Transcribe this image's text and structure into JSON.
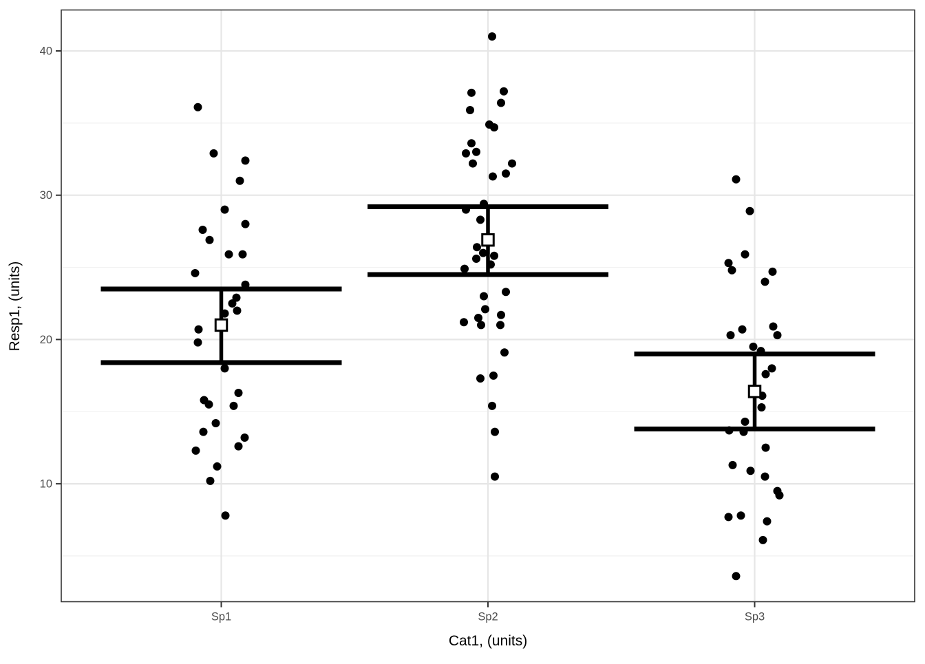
{
  "figure": {
    "title": "",
    "xlabel": "Cat1, (units)",
    "ylabel": "Resp1, (units)"
  },
  "colors": {
    "background": "#ffffff",
    "point": "#000000",
    "crossbar": "#000000",
    "mean_marker_fill": "#ffffff",
    "mean_marker_border": "#000000",
    "grid_major": "#e6e6e6",
    "grid_minor": "#f2f2f2",
    "panel_border": "#333333",
    "tick_mark": "#333333",
    "tick_text": "#4d4d4d",
    "title_text": "#000000"
  },
  "chart_data": {
    "type": "scatter",
    "subtype": "jittered-points-with-mean-and-errorbar-crossbars",
    "title": "",
    "xlabel": "Cat1, (units)",
    "ylabel": "Resp1, (units)",
    "legend": "none",
    "grid": "major+minor",
    "x_categories": [
      "Sp1",
      "Sp2",
      "Sp3"
    ],
    "y_major_ticks": [
      10,
      20,
      30,
      40
    ],
    "y_minor_gridlines": [
      5,
      15,
      25,
      35
    ],
    "ylim": [
      1.8,
      42.9
    ],
    "summary_stats": [
      {
        "category": "Sp1",
        "mean": 21.0,
        "lower": 18.4,
        "upper": 23.5
      },
      {
        "category": "Sp2",
        "mean": 26.9,
        "lower": 24.5,
        "upper": 29.2
      },
      {
        "category": "Sp3",
        "mean": 16.4,
        "lower": 13.8,
        "upper": 19.0
      }
    ],
    "series": [
      {
        "name": "Sp1",
        "points": [
          [
            -34,
            36.1
          ],
          [
            -11,
            32.9
          ],
          [
            35,
            32.4
          ],
          [
            27,
            31.0
          ],
          [
            5,
            29.0
          ],
          [
            35,
            28.0
          ],
          [
            -27,
            27.6
          ],
          [
            -17,
            26.9
          ],
          [
            11,
            25.9
          ],
          [
            31,
            25.9
          ],
          [
            -38,
            24.6
          ],
          [
            35,
            23.8
          ],
          [
            22,
            22.9
          ],
          [
            16,
            22.5
          ],
          [
            23,
            22.0
          ],
          [
            5,
            21.8
          ],
          [
            -33,
            20.7
          ],
          [
            -34,
            19.8
          ],
          [
            5,
            18.0
          ],
          [
            25,
            16.3
          ],
          [
            -25,
            15.8
          ],
          [
            -18,
            15.5
          ],
          [
            18,
            15.4
          ],
          [
            -8,
            14.2
          ],
          [
            -26,
            13.6
          ],
          [
            34,
            13.2
          ],
          [
            25,
            12.6
          ],
          [
            -37,
            12.3
          ],
          [
            -6,
            11.2
          ],
          [
            -16,
            10.2
          ],
          [
            6,
            7.8
          ]
        ]
      },
      {
        "name": "Sp2",
        "points": [
          [
            6,
            41.0
          ],
          [
            23,
            37.2
          ],
          [
            -24,
            37.1
          ],
          [
            19,
            36.4
          ],
          [
            -26,
            35.9
          ],
          [
            2,
            34.9
          ],
          [
            9,
            34.7
          ],
          [
            -24,
            33.6
          ],
          [
            -17,
            33.0
          ],
          [
            -32,
            32.9
          ],
          [
            35,
            32.2
          ],
          [
            -22,
            32.2
          ],
          [
            26,
            31.5
          ],
          [
            7,
            31.3
          ],
          [
            -6,
            29.4
          ],
          [
            -32,
            29.0
          ],
          [
            -11,
            28.3
          ],
          [
            -16,
            26.4
          ],
          [
            -7,
            26.0
          ],
          [
            9,
            25.8
          ],
          [
            -17,
            25.6
          ],
          [
            4,
            25.2
          ],
          [
            -34,
            24.9
          ],
          [
            26,
            23.3
          ],
          [
            -6,
            23.0
          ],
          [
            -4,
            22.1
          ],
          [
            19,
            21.7
          ],
          [
            -14,
            21.5
          ],
          [
            -35,
            21.2
          ],
          [
            -10,
            21.0
          ],
          [
            18,
            21.0
          ],
          [
            24,
            19.1
          ],
          [
            8,
            17.5
          ],
          [
            -11,
            17.3
          ],
          [
            6,
            15.4
          ],
          [
            10,
            13.6
          ],
          [
            10,
            10.5
          ]
        ]
      },
      {
        "name": "Sp3",
        "points": [
          [
            -27,
            31.1
          ],
          [
            -7,
            28.9
          ],
          [
            -14,
            25.9
          ],
          [
            -38,
            25.3
          ],
          [
            -33,
            24.8
          ],
          [
            26,
            24.7
          ],
          [
            15,
            24.0
          ],
          [
            27,
            20.9
          ],
          [
            -18,
            20.7
          ],
          [
            -35,
            20.3
          ],
          [
            33,
            20.3
          ],
          [
            -2,
            19.5
          ],
          [
            9,
            19.2
          ],
          [
            25,
            18.0
          ],
          [
            16,
            17.6
          ],
          [
            11,
            16.1
          ],
          [
            10,
            15.3
          ],
          [
            -14,
            14.3
          ],
          [
            -37,
            13.7
          ],
          [
            -16,
            13.6
          ],
          [
            16,
            12.5
          ],
          [
            -32,
            11.3
          ],
          [
            -6,
            10.9
          ],
          [
            15,
            10.5
          ],
          [
            33,
            9.5
          ],
          [
            36,
            9.2
          ],
          [
            -38,
            7.7
          ],
          [
            -20,
            7.8
          ],
          [
            18,
            7.4
          ],
          [
            12,
            6.1
          ],
          [
            -27,
            3.6
          ]
        ]
      }
    ],
    "point_jitter_note": "points stored as [horizontal_jitter_px_offset, y_value]"
  }
}
